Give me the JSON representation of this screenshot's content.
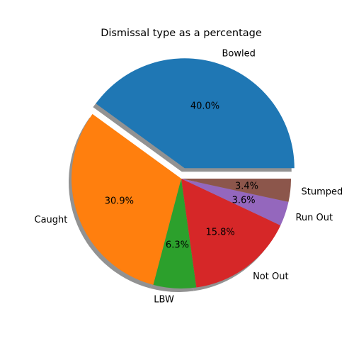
{
  "chart_data": {
    "type": "pie",
    "title": "Dismissal type as a percentage",
    "categories": [
      "Bowled",
      "Caught",
      "LBW",
      "Not Out",
      "Run Out",
      "Stumped"
    ],
    "values": [
      40.0,
      30.9,
      6.3,
      15.8,
      3.6,
      3.4
    ],
    "value_labels": [
      "40.0%",
      "30.9%",
      "6.3%",
      "15.8%",
      "3.6%",
      "3.4%"
    ],
    "colors": [
      "#1f77b4",
      "#ff7f0e",
      "#2ca02c",
      "#d62728",
      "#9467bd",
      "#8c564b"
    ],
    "explode": [
      0.1,
      0,
      0,
      0,
      0,
      0
    ],
    "shadow": true,
    "start_angle_deg": 0,
    "direction": "counterclockwise",
    "legend": "none"
  }
}
